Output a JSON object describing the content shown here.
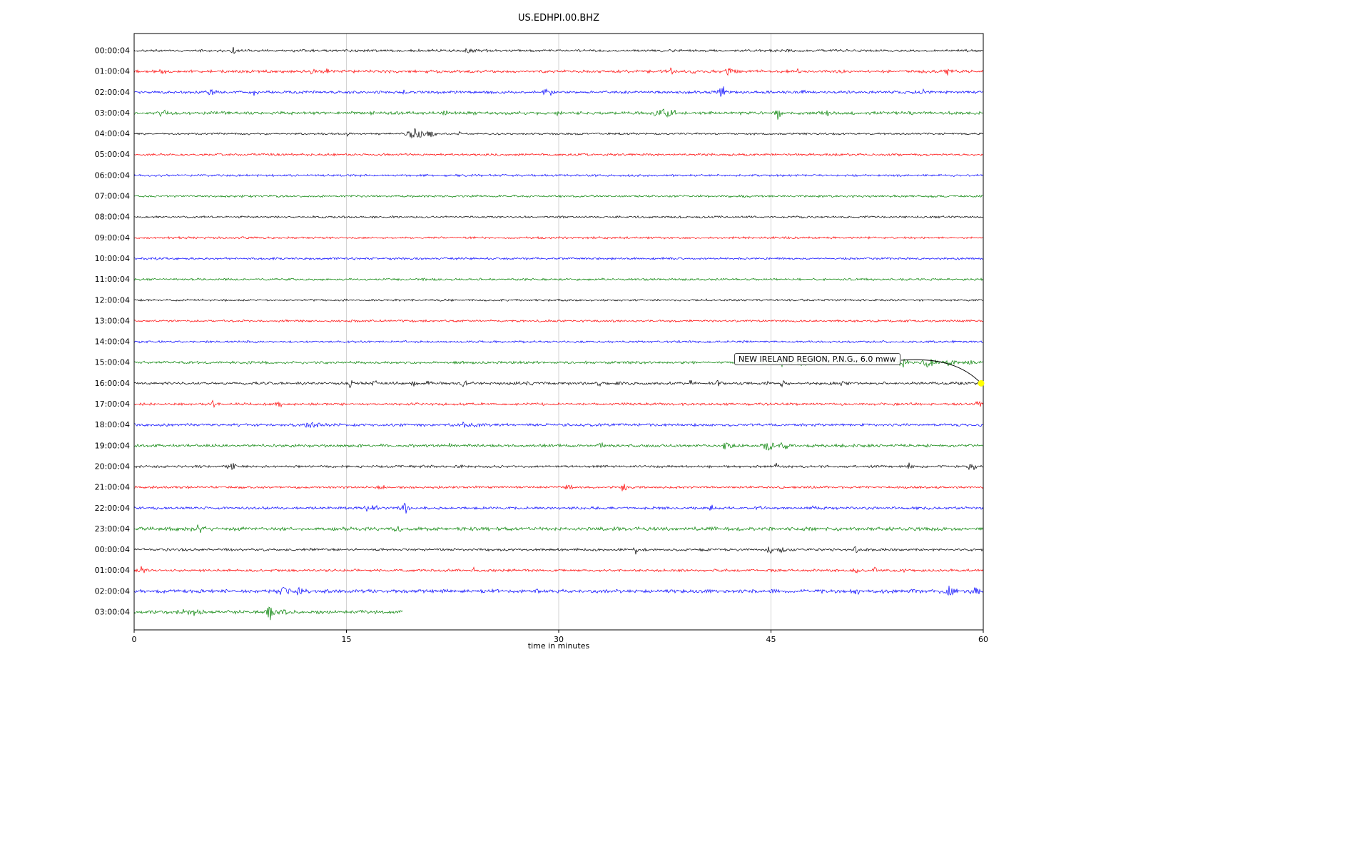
{
  "chart_data": {
    "type": "line",
    "subtype": "helicorder-seismogram",
    "title": "US.EDHPI.00.BHZ",
    "xlabel": "time in minutes",
    "x_range": [
      0,
      60
    ],
    "x_ticks": [
      0,
      15,
      30,
      45,
      60
    ],
    "grid_ticks": [
      15,
      30,
      45
    ],
    "colors": {
      "cycle": [
        "#000000",
        "#ff0000",
        "#0000ff",
        "#008000"
      ],
      "grid": "#c8c8c8",
      "marker": "#ffff00",
      "border": "#000000"
    },
    "annotation": {
      "text": "NEW IRELAND REGION, P.N.G., 6.0 mww",
      "target_row": 16,
      "target_minute": 60
    },
    "rows": [
      {
        "label": "00:00:04",
        "color": "#000000",
        "amp": 2.0,
        "end": 60,
        "events": [
          [
            7,
            7,
            0.12
          ],
          [
            23.7,
            4,
            0.35
          ]
        ]
      },
      {
        "label": "01:00:04",
        "color": "#ff0000",
        "amp": 2.4,
        "end": 60,
        "events": [
          [
            2,
            5,
            0.2
          ],
          [
            12.7,
            4,
            0.25
          ],
          [
            13.5,
            4,
            0.2
          ],
          [
            38,
            6,
            0.3
          ],
          [
            39.5,
            4,
            0.2
          ],
          [
            42,
            6,
            0.35
          ],
          [
            47,
            3,
            0.3
          ],
          [
            57.5,
            5,
            0.3
          ]
        ]
      },
      {
        "label": "02:00:04",
        "color": "#0000ff",
        "amp": 2.3,
        "end": 60,
        "events": [
          [
            5.5,
            4,
            0.3
          ],
          [
            8.6,
            4,
            0.25
          ],
          [
            19,
            3.5,
            0.3
          ],
          [
            29.3,
            5,
            0.4
          ],
          [
            41.5,
            9,
            0.35
          ],
          [
            47.2,
            3,
            0.25
          ],
          [
            55.8,
            3,
            0.3
          ]
        ]
      },
      {
        "label": "03:00:04",
        "color": "#008000",
        "amp": 2.5,
        "end": 60,
        "events": [
          [
            2,
            4,
            0.5
          ],
          [
            22,
            3.5,
            0.3
          ],
          [
            30,
            3.5,
            0.3
          ],
          [
            37.5,
            5,
            0.8
          ],
          [
            45.5,
            9,
            0.2
          ],
          [
            49,
            6,
            0.15
          ],
          [
            55,
            3,
            0.3
          ]
        ]
      },
      {
        "label": "04:00:04",
        "color": "#000000",
        "amp": 1.7,
        "end": 60,
        "events": [
          [
            15,
            3.5,
            0.12
          ],
          [
            19.8,
            8,
            0.6
          ],
          [
            21,
            5,
            0.4
          ],
          [
            23,
            3,
            0.2
          ]
        ]
      },
      {
        "label": "05:00:04",
        "color": "#ff0000",
        "amp": 1.9,
        "end": 60,
        "events": []
      },
      {
        "label": "06:00:04",
        "color": "#0000ff",
        "amp": 1.9,
        "end": 60,
        "events": []
      },
      {
        "label": "07:00:04",
        "color": "#008000",
        "amp": 1.8,
        "end": 60,
        "events": []
      },
      {
        "label": "08:00:04",
        "color": "#000000",
        "amp": 1.7,
        "end": 60,
        "events": []
      },
      {
        "label": "09:00:04",
        "color": "#ff0000",
        "amp": 1.8,
        "end": 60,
        "events": []
      },
      {
        "label": "10:00:04",
        "color": "#0000ff",
        "amp": 1.8,
        "end": 60,
        "events": []
      },
      {
        "label": "11:00:04",
        "color": "#008000",
        "amp": 1.8,
        "end": 60,
        "events": []
      },
      {
        "label": "12:00:04",
        "color": "#000000",
        "amp": 1.7,
        "end": 60,
        "events": []
      },
      {
        "label": "13:00:04",
        "color": "#ff0000",
        "amp": 1.8,
        "end": 60,
        "events": []
      },
      {
        "label": "14:00:04",
        "color": "#0000ff",
        "amp": 1.8,
        "end": 60,
        "events": []
      },
      {
        "label": "15:00:04",
        "color": "#008000",
        "amp": 2.1,
        "end": 60,
        "events": [
          [
            45.8,
            8,
            0.5
          ],
          [
            47.2,
            4,
            0.5
          ],
          [
            54.3,
            6,
            0.5
          ],
          [
            56.3,
            8,
            0.6
          ],
          [
            57.5,
            5,
            0.4
          ],
          [
            59.2,
            4,
            0.3
          ]
        ]
      },
      {
        "label": "16:00:04",
        "color": "#000000",
        "amp": 2.3,
        "end": 60,
        "events": [
          [
            15.3,
            5,
            0.2
          ],
          [
            17,
            4,
            0.2
          ],
          [
            19.8,
            6,
            0.25
          ],
          [
            20.8,
            5,
            0.2
          ],
          [
            23.3,
            5,
            0.3
          ],
          [
            28,
            3,
            0.2
          ],
          [
            32.8,
            5,
            0.2
          ],
          [
            34.3,
            4,
            0.15
          ],
          [
            39.3,
            4,
            0.15
          ],
          [
            41.2,
            4,
            0.15
          ],
          [
            44.8,
            4,
            0.15
          ],
          [
            45.8,
            5,
            0.2
          ],
          [
            50,
            3,
            0.2
          ]
        ]
      },
      {
        "label": "17:00:04",
        "color": "#ff0000",
        "amp": 2.1,
        "end": 60,
        "events": [
          [
            5.6,
            5,
            0.18
          ],
          [
            10.2,
            5,
            0.22
          ],
          [
            59.6,
            5,
            0.35
          ]
        ]
      },
      {
        "label": "18:00:04",
        "color": "#0000ff",
        "amp": 2.3,
        "end": 60,
        "events": [
          [
            12.4,
            4,
            0.4
          ],
          [
            13.2,
            4,
            0.3
          ],
          [
            23.4,
            4,
            0.4
          ],
          [
            24.2,
            3,
            0.3
          ]
        ]
      },
      {
        "label": "19:00:04",
        "color": "#008000",
        "amp": 2.3,
        "end": 60,
        "events": [
          [
            22.4,
            3,
            0.2
          ],
          [
            33,
            4,
            0.2
          ],
          [
            41.9,
            5,
            0.4
          ],
          [
            44.8,
            9,
            0.45
          ],
          [
            46,
            4,
            0.4
          ],
          [
            52,
            3,
            0.2
          ]
        ]
      },
      {
        "label": "20:00:04",
        "color": "#000000",
        "amp": 2.1,
        "end": 60,
        "events": [
          [
            7,
            4,
            0.5
          ],
          [
            45.4,
            4,
            0.15
          ],
          [
            54.8,
            5,
            0.2
          ],
          [
            59.2,
            5,
            0.3
          ]
        ]
      },
      {
        "label": "21:00:04",
        "color": "#ff0000",
        "amp": 1.9,
        "end": 60,
        "events": [
          [
            17.5,
            3,
            0.3
          ],
          [
            30.6,
            5,
            0.3
          ],
          [
            34.6,
            6,
            0.25
          ]
        ]
      },
      {
        "label": "22:00:04",
        "color": "#0000ff",
        "amp": 2.1,
        "end": 60,
        "events": [
          [
            16.8,
            4,
            0.8
          ],
          [
            19.2,
            6,
            0.4
          ],
          [
            40.8,
            4,
            0.2
          ],
          [
            44.2,
            4,
            0.2
          ],
          [
            48,
            3,
            0.2
          ]
        ]
      },
      {
        "label": "23:00:04",
        "color": "#008000",
        "amp": 2.9,
        "end": 60,
        "events": [
          [
            4.7,
            4,
            0.8
          ],
          [
            18.6,
            4,
            0.5
          ]
        ]
      },
      {
        "label": "00:00:04",
        "color": "#000000",
        "amp": 2.1,
        "end": 60,
        "events": [
          [
            35.4,
            5,
            0.2
          ],
          [
            44.9,
            6,
            0.25
          ],
          [
            45.8,
            5,
            0.2
          ],
          [
            51,
            5,
            0.15
          ]
        ]
      },
      {
        "label": "01:00:04",
        "color": "#ff0000",
        "amp": 2.1,
        "end": 60,
        "events": [
          [
            0.6,
            5,
            0.3
          ],
          [
            24,
            3,
            0.2
          ],
          [
            51,
            4,
            0.25
          ],
          [
            52.4,
            4,
            0.2
          ],
          [
            54.4,
            3,
            0.2
          ]
        ]
      },
      {
        "label": "02:00:04",
        "color": "#0000ff",
        "amp": 2.9,
        "end": 60,
        "events": [
          [
            10.6,
            5,
            0.4
          ],
          [
            11.6,
            4,
            0.3
          ],
          [
            28.5,
            3,
            0.3
          ],
          [
            51,
            4,
            0.3
          ],
          [
            57.6,
            7,
            0.5
          ],
          [
            59.4,
            5,
            0.4
          ]
        ]
      },
      {
        "label": "03:00:04",
        "color": "#008000",
        "amp": 2.9,
        "end": 19,
        "events": [
          [
            4,
            4,
            0.8
          ],
          [
            9.6,
            12,
            0.25
          ],
          [
            10.4,
            7,
            0.35
          ],
          [
            16,
            3,
            0.3
          ]
        ]
      }
    ]
  }
}
